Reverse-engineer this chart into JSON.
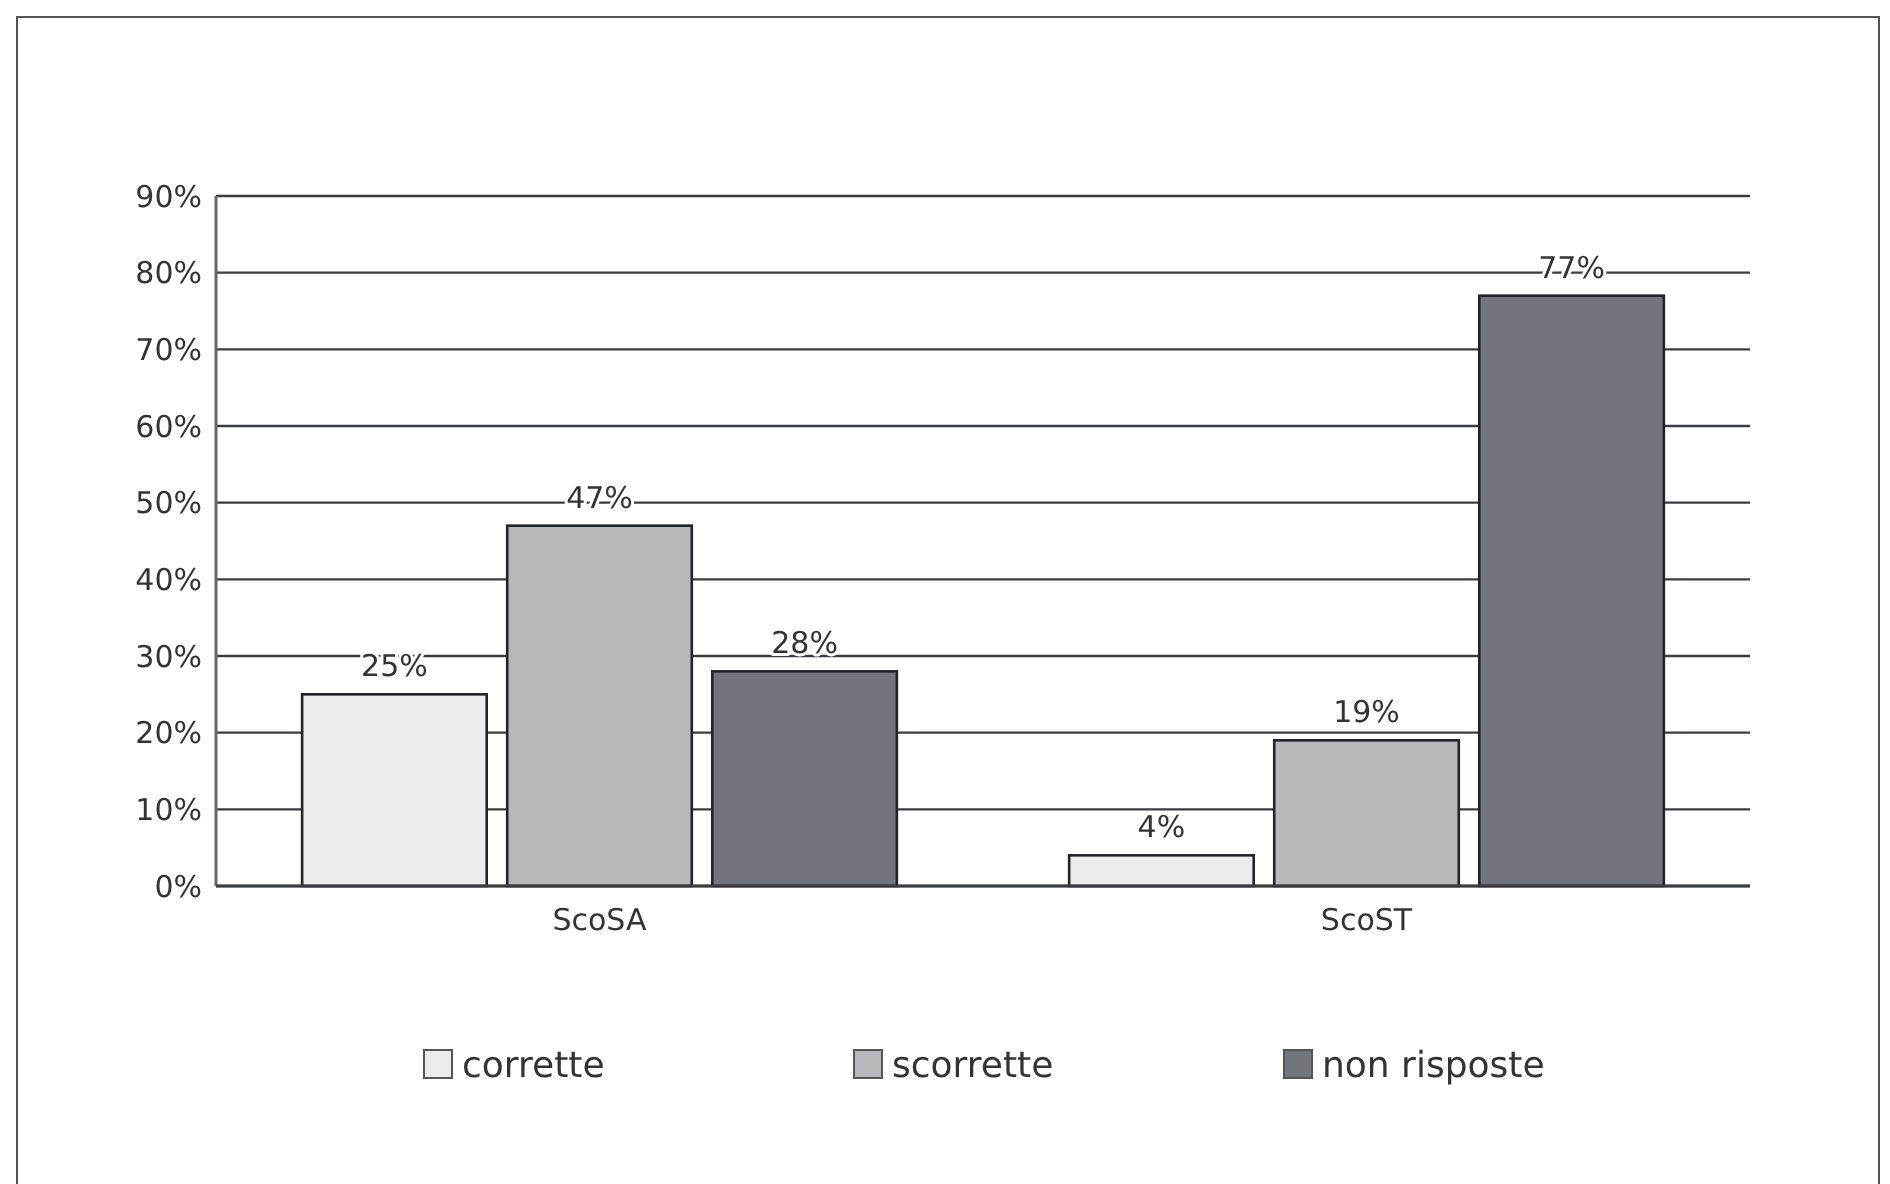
{
  "chart_data": {
    "type": "bar",
    "categories": [
      "ScoSA",
      "ScoST"
    ],
    "series": [
      {
        "name": "corrette",
        "color": "#e9ebec",
        "values": [
          25,
          4
        ],
        "value_labels": [
          "25%",
          "4%"
        ]
      },
      {
        "name": "scorrette",
        "color": "#b6b8bc",
        "values": [
          47,
          19
        ],
        "value_labels": [
          "47%",
          "19%"
        ]
      },
      {
        "name": "non risposte",
        "color": "#72757c",
        "values": [
          28,
          77
        ],
        "value_labels": [
          "28%",
          "77%"
        ]
      }
    ],
    "ylim": [
      0,
      90
    ],
    "yticks": [
      {
        "value": 0,
        "label": "0%"
      },
      {
        "value": 10,
        "label": "10%"
      },
      {
        "value": 20,
        "label": "20%"
      },
      {
        "value": 30,
        "label": "30%"
      },
      {
        "value": 40,
        "label": "40%"
      },
      {
        "value": 50,
        "label": "50%"
      },
      {
        "value": 60,
        "label": "60%"
      },
      {
        "value": 70,
        "label": "70%"
      },
      {
        "value": 80,
        "label": "80%"
      },
      {
        "value": 90,
        "label": "90%"
      }
    ],
    "grid": "y",
    "legend": "bottom"
  }
}
